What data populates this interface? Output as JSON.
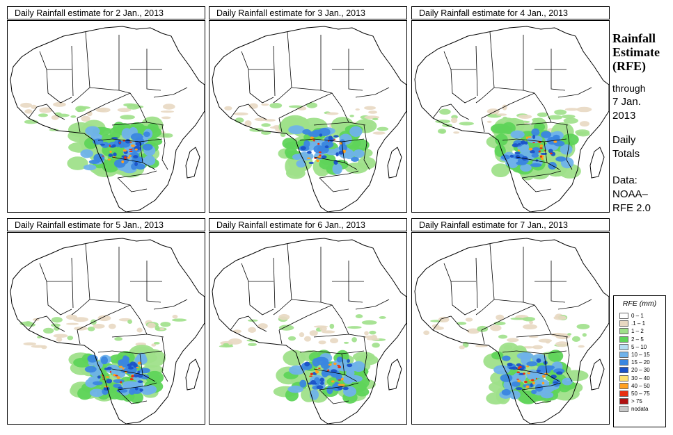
{
  "panels": [
    {
      "title": "Daily Rainfall estimate for  2 Jan., 2013",
      "intensity": 0.95
    },
    {
      "title": "Daily Rainfall estimate for  3 Jan., 2013",
      "intensity": 0.75
    },
    {
      "title": "Daily Rainfall estimate for  4 Jan., 2013",
      "intensity": 0.85
    },
    {
      "title": "Daily Rainfall estimate for  5 Jan., 2013",
      "intensity": 1.0
    },
    {
      "title": "Daily Rainfall estimate for  6 Jan., 2013",
      "intensity": 0.8
    },
    {
      "title": "Daily Rainfall estimate for  7 Jan., 2013",
      "intensity": 0.85
    }
  ],
  "sidebar": {
    "title_line1": "Rainfall",
    "title_line2": "Estimate",
    "title_line3": "(RFE)",
    "through_line1": "through",
    "through_line2": "7 Jan.",
    "through_line3": "2013",
    "totals_line1": "Daily",
    "totals_line2": "Totals",
    "data_line1": "Data:",
    "data_line2": "NOAA–",
    "data_line3": "RFE 2.0"
  },
  "legend": {
    "title": "RFE (mm)",
    "items": [
      {
        "label": "0 – 1",
        "color": "#ffffff"
      },
      {
        "label": ".1 – 1",
        "color": "#e8d8c2"
      },
      {
        "label": "1 – 2",
        "color": "#9fe08a"
      },
      {
        "label": "2 – 5",
        "color": "#5fd45a"
      },
      {
        "label": "5 – 10",
        "color": "#b6ddf2"
      },
      {
        "label": "10 – 15",
        "color": "#6fb2ea"
      },
      {
        "label": "15 – 20",
        "color": "#3a86e0"
      },
      {
        "label": "20 – 30",
        "color": "#1a52c8"
      },
      {
        "label": "30 – 40",
        "color": "#ffe070"
      },
      {
        "label": "40 – 50",
        "color": "#ffa020"
      },
      {
        "label": "50 – 75",
        "color": "#e83010"
      },
      {
        "label": "> 75",
        "color": "#b01010"
      },
      {
        "label": "nodata",
        "color": "#c8c8c8"
      }
    ]
  }
}
